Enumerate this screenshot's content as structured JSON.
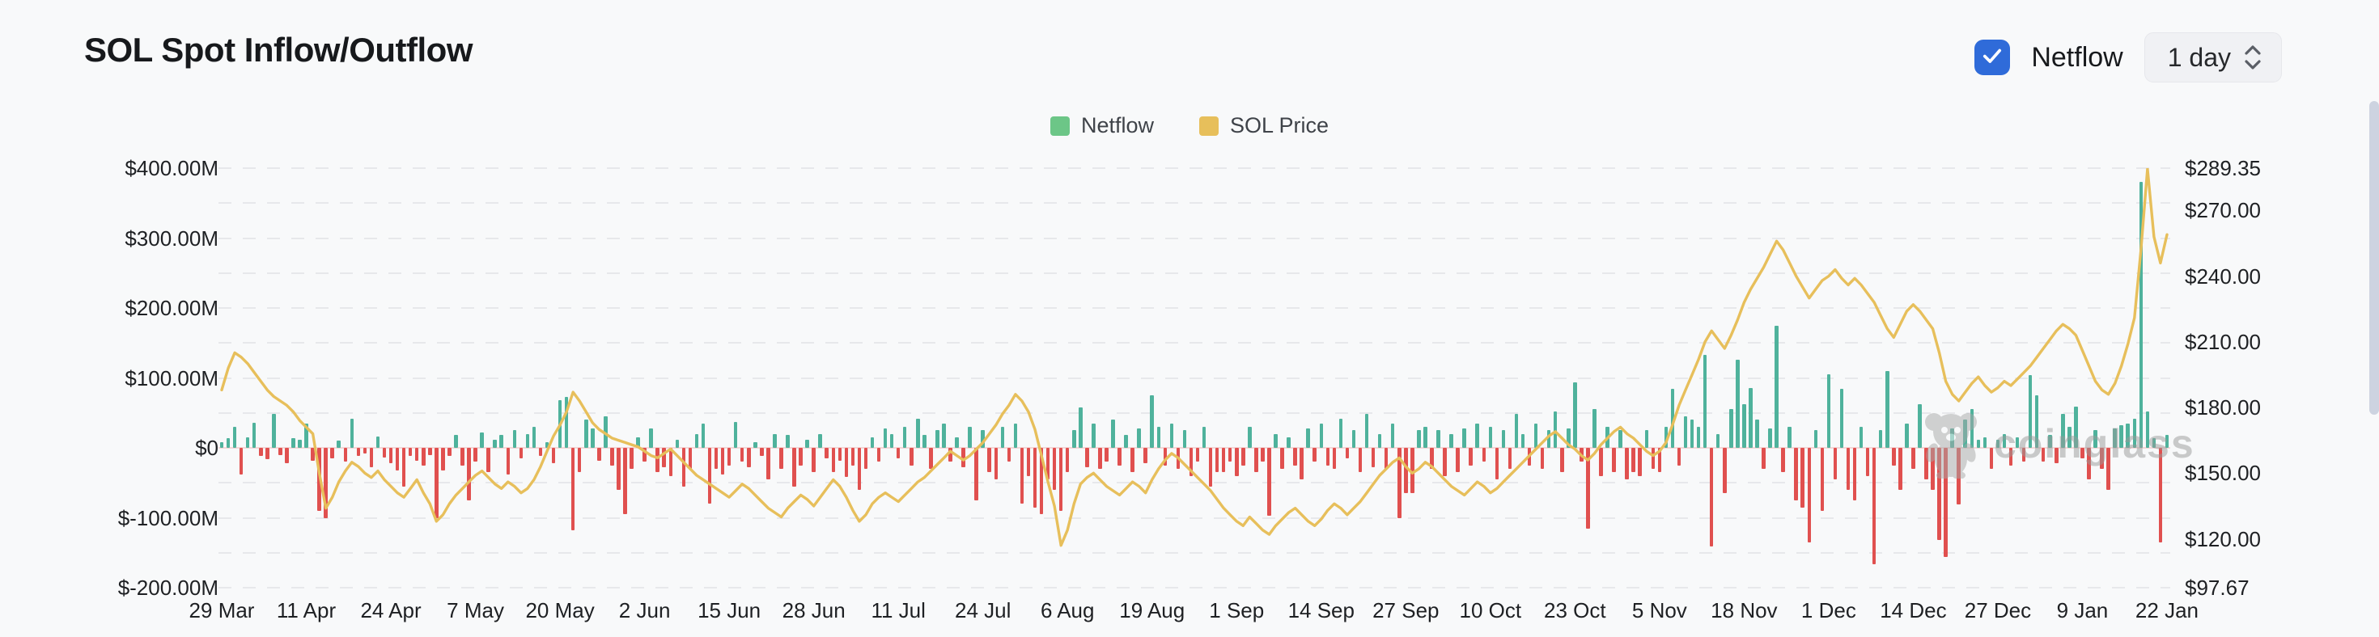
{
  "header": {
    "title": "SOL Spot Inflow/Outflow",
    "netflow_toggle": {
      "label": "Netflow",
      "checked": true,
      "checkbox_color": "#2F6BD9",
      "icon": "check-icon"
    },
    "interval_select": {
      "value": "1 day",
      "icon": "chevron-up-down-icon"
    }
  },
  "legend": {
    "items": [
      {
        "label": "Netflow",
        "color": "#6CC687"
      },
      {
        "label": "SOL Price",
        "color": "#E7BF5B"
      }
    ]
  },
  "watermark": {
    "icon": "coinglass-mascot-icon",
    "text": "coinglass"
  },
  "chart_data": {
    "type": "bar",
    "subtype": "bar+line dual axis",
    "title": "SOL Spot Inflow/Outflow",
    "grid": true,
    "legend_position": "top-center",
    "y_axis_left": {
      "name": "Netflow (USD)",
      "min": -200,
      "max": 400,
      "unit": "M",
      "ticks": [
        {
          "label": "$400.00M",
          "value": 400
        },
        {
          "label": "$300.00M",
          "value": 300
        },
        {
          "label": "$200.00M",
          "value": 200
        },
        {
          "label": "$100.00M",
          "value": 100
        },
        {
          "label": "$0",
          "value": 0
        },
        {
          "label": "$-100.00M",
          "value": -100
        },
        {
          "label": "$-200.00M",
          "value": -200
        }
      ],
      "minor_grid_step": 50
    },
    "y_axis_right": {
      "name": "SOL Price (USD)",
      "min": 97.67,
      "max": 289.35,
      "ticks": [
        {
          "label": "$289.35",
          "value": 289.35
        },
        {
          "label": "$270.00",
          "value": 270
        },
        {
          "label": "$240.00",
          "value": 240
        },
        {
          "label": "$210.00",
          "value": 210
        },
        {
          "label": "$180.00",
          "value": 180
        },
        {
          "label": "$150.00",
          "value": 150
        },
        {
          "label": "$120.00",
          "value": 120
        },
        {
          "label": "$97.67",
          "value": 97.67
        }
      ]
    },
    "x_axis": {
      "tick_interval_days": 13,
      "tick_labels": [
        "29 Mar",
        "11 Apr",
        "24 Apr",
        "7 May",
        "20 May",
        "2 Jun",
        "15 Jun",
        "28 Jun",
        "11 Jul",
        "24 Jul",
        "6 Aug",
        "19 Aug",
        "1 Sep",
        "14 Sep",
        "27 Sep",
        "10 Oct",
        "23 Oct",
        "5 Nov",
        "18 Nov",
        "1 Dec",
        "14 Dec",
        "27 Dec",
        "9 Jan",
        "22 Jan"
      ]
    },
    "series": [
      {
        "name": "Netflow",
        "type": "bar",
        "axis": "left",
        "unit": "USD millions",
        "color_positive": "#4FB29C",
        "color_negative": "#E0504F",
        "values": [
          8,
          14,
          30,
          -38,
          15,
          36,
          -12,
          -16,
          48,
          -10,
          -22,
          14,
          12,
          35,
          -18,
          -90,
          -100,
          -15,
          10,
          -20,
          42,
          -12,
          -8,
          -28,
          16,
          -14,
          -22,
          -32,
          -55,
          -12,
          -18,
          -25,
          -10,
          -100,
          -32,
          -12,
          18,
          -25,
          -75,
          -20,
          22,
          -35,
          12,
          18,
          -38,
          25,
          -15,
          20,
          30,
          -12,
          8,
          -22,
          68,
          73,
          -118,
          -35,
          40,
          28,
          -18,
          45,
          -25,
          -60,
          -95,
          -30,
          15,
          -20,
          28,
          -35,
          -28,
          -40,
          12,
          -55,
          -30,
          20,
          35,
          -80,
          -30,
          -38,
          -25,
          37,
          -20,
          -28,
          8,
          -12,
          -45,
          20,
          -30,
          18,
          -55,
          -25,
          12,
          -35,
          20,
          -15,
          -35,
          -18,
          -42,
          -25,
          -60,
          -30,
          15,
          -20,
          28,
          20,
          -15,
          30,
          -25,
          42,
          18,
          -30,
          25,
          35,
          -20,
          15,
          -28,
          30,
          -75,
          25,
          -35,
          -45,
          30,
          -20,
          35,
          -80,
          -40,
          -85,
          -95,
          -45,
          -60,
          -90,
          -35,
          25,
          58,
          -28,
          35,
          -30,
          -20,
          40,
          -25,
          18,
          -35,
          28,
          -22,
          75,
          30,
          -25,
          35,
          -30,
          25,
          -40,
          -20,
          30,
          -55,
          -35,
          -35,
          -20,
          -40,
          -25,
          30,
          -35,
          -20,
          -97,
          20,
          -30,
          15,
          -25,
          -45,
          28,
          -20,
          35,
          -25,
          -30,
          42,
          -15,
          25,
          -35,
          48,
          -28,
          20,
          -30,
          35,
          -100,
          -65,
          -65,
          25,
          30,
          -30,
          25,
          -40,
          20,
          -35,
          28,
          -25,
          35,
          -20,
          30,
          -45,
          25,
          -30,
          48,
          20,
          -25,
          35,
          -30,
          25,
          52,
          -35,
          28,
          94,
          -20,
          -116,
          55,
          -40,
          30,
          -35,
          25,
          -45,
          -35,
          -40,
          25,
          -30,
          -35,
          30,
          84,
          -25,
          45,
          40,
          30,
          133,
          -141,
          20,
          -65,
          55,
          126,
          62,
          85,
          40,
          -30,
          28,
          175,
          -35,
          30,
          -75,
          -86,
          -135,
          25,
          -90,
          105,
          -45,
          84,
          -60,
          -75,
          30,
          -40,
          -166,
          25,
          110,
          -25,
          -60,
          35,
          -30,
          63,
          -45,
          -60,
          -132,
          -156,
          28,
          -81,
          40,
          56,
          12,
          15,
          -30,
          12,
          20,
          -25,
          15,
          -20,
          104,
          75,
          -20,
          18,
          -22,
          48,
          30,
          59,
          -15,
          -45,
          25,
          -30,
          -60,
          28,
          32,
          35,
          42,
          380,
          52,
          14,
          -135,
          18
        ]
      },
      {
        "name": "SOL Price",
        "type": "line",
        "axis": "right",
        "unit": "USD",
        "color": "#E7BF5B",
        "values": [
          188,
          198,
          205,
          203,
          200,
          196,
          192,
          188,
          185,
          183,
          181,
          178,
          174,
          171,
          168,
          150,
          134,
          139,
          146,
          151,
          155,
          153,
          150,
          148,
          151,
          147,
          144,
          141,
          139,
          143,
          147,
          141,
          136,
          128,
          131,
          136,
          140,
          143,
          146,
          149,
          151,
          148,
          145,
          143,
          146,
          144,
          141,
          143,
          147,
          153,
          160,
          167,
          172,
          178,
          187,
          183,
          178,
          173,
          170,
          168,
          166,
          165,
          164,
          163,
          162,
          160,
          158,
          157,
          159,
          161,
          158,
          155,
          152,
          149,
          147,
          145,
          143,
          141,
          139,
          142,
          145,
          143,
          140,
          137,
          134,
          132,
          130,
          134,
          137,
          140,
          138,
          135,
          139,
          143,
          147,
          144,
          139,
          133,
          128,
          131,
          136,
          139,
          141,
          139,
          137,
          140,
          143,
          146,
          148,
          151,
          154,
          157,
          160,
          158,
          156,
          158,
          161,
          164,
          168,
          172,
          177,
          181,
          186,
          183,
          178,
          170,
          158,
          146,
          135,
          117,
          124,
          136,
          145,
          148,
          150,
          147,
          144,
          142,
          140,
          143,
          146,
          144,
          141,
          147,
          152,
          156,
          159,
          157,
          154,
          151,
          148,
          145,
          142,
          138,
          134,
          131,
          128,
          126,
          130,
          127,
          124,
          122,
          126,
          129,
          132,
          134,
          131,
          128,
          126,
          129,
          133,
          136,
          134,
          131,
          134,
          137,
          141,
          145,
          149,
          152,
          155,
          157,
          153,
          150,
          152,
          155,
          153,
          150,
          147,
          144,
          142,
          140,
          143,
          146,
          144,
          141,
          143,
          146,
          149,
          152,
          155,
          158,
          161,
          164,
          167,
          169,
          166,
          163,
          161,
          158,
          156,
          159,
          163,
          166,
          169,
          171,
          168,
          166,
          163,
          160,
          158,
          160,
          164,
          172,
          181,
          188,
          195,
          202,
          210,
          215,
          211,
          207,
          213,
          220,
          228,
          234,
          239,
          244,
          250,
          256,
          252,
          246,
          240,
          235,
          230,
          234,
          238,
          240,
          243,
          239,
          236,
          239,
          236,
          232,
          228,
          222,
          216,
          212,
          218,
          224,
          227,
          224,
          220,
          216,
          205,
          192,
          186,
          183,
          187,
          191,
          194,
          190,
          187,
          189,
          192,
          190,
          193,
          196,
          199,
          203,
          207,
          211,
          215,
          218,
          216,
          213,
          206,
          199,
          192,
          188,
          186,
          191,
          199,
          209,
          221,
          252,
          289,
          258,
          246,
          259
        ]
      }
    ]
  }
}
